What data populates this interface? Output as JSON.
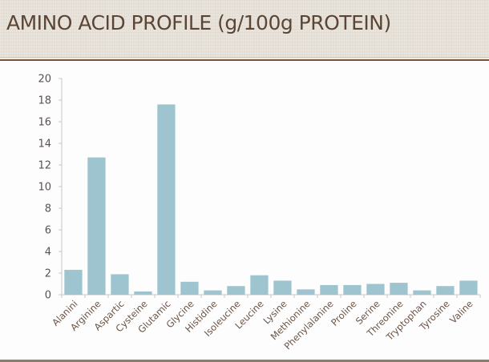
{
  "slide": {
    "title": "AMINO ACID PROFILE (g/100g PROTEIN)"
  },
  "colors": {
    "bar": "#9ec5cf",
    "title": "#5b4636",
    "axis_text": "#5a5250",
    "header_rule": "#7a5132"
  },
  "chart_data": {
    "type": "bar",
    "title": "AMINO ACID PROFILE (g/100g PROTEIN)",
    "xlabel": "",
    "ylabel": "",
    "ylim": [
      0,
      20
    ],
    "yticks": [
      0,
      2,
      4,
      6,
      8,
      10,
      12,
      14,
      16,
      18,
      20
    ],
    "grid": false,
    "legend": null,
    "categories": [
      "Alanini",
      "Arginine",
      "Aspartic",
      "Cysteine",
      "Glutamic",
      "Glycine",
      "Histidine",
      "Isoleucine",
      "Leucine",
      "Lysine",
      "Methionine",
      "Phenylalanine",
      "Proline",
      "Serine",
      "Threonine",
      "Tryptophan",
      "Tyrosine",
      "Valine"
    ],
    "values": [
      2.3,
      12.7,
      1.9,
      0.3,
      17.6,
      1.2,
      0.4,
      0.8,
      1.8,
      1.3,
      0.5,
      0.9,
      0.9,
      1.0,
      1.1,
      0.4,
      0.8,
      1.3
    ]
  }
}
